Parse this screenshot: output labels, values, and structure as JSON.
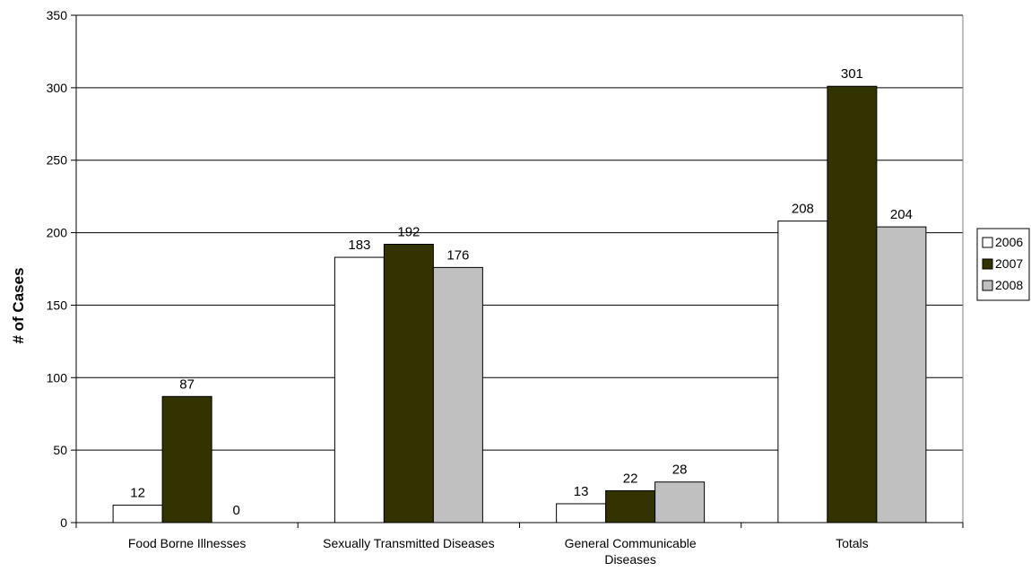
{
  "chart_data": {
    "type": "bar",
    "title": "",
    "xlabel": "",
    "ylabel": "# of Cases",
    "categories": [
      [
        "Food Borne Illnesses"
      ],
      [
        "Sexually Transmitted Diseases"
      ],
      [
        "General Communicable",
        "Diseases"
      ],
      [
        "Totals"
      ]
    ],
    "series": [
      {
        "name": "2006",
        "color": "#ffffff",
        "values": [
          12,
          183,
          13,
          208
        ]
      },
      {
        "name": "2007",
        "color": "#333300",
        "values": [
          87,
          192,
          22,
          301
        ]
      },
      {
        "name": "2008",
        "color": "#c0c0c0",
        "values": [
          0,
          176,
          28,
          204
        ]
      }
    ],
    "ylim": [
      0,
      350
    ],
    "yticks": [
      0,
      50,
      100,
      150,
      200,
      250,
      300,
      350
    ],
    "grid": true,
    "legend": "right"
  }
}
